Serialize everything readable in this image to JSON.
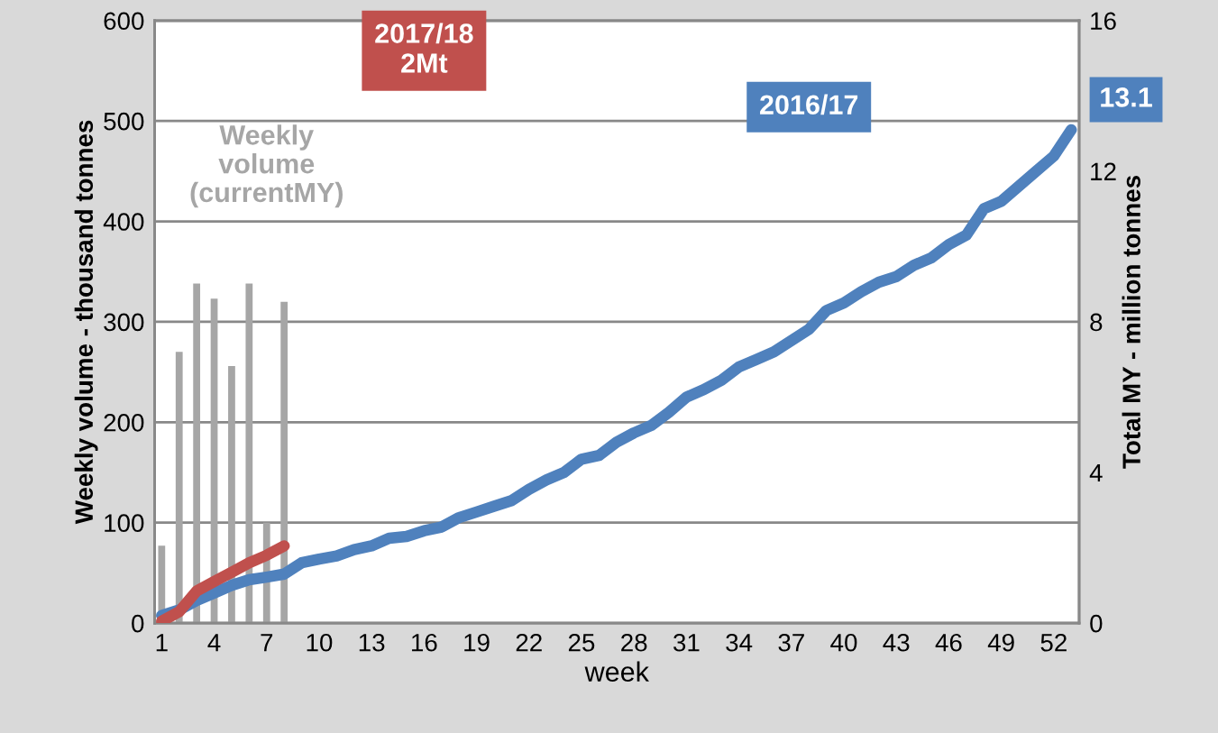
{
  "chart_data": {
    "type": "bar",
    "xlabel": "week",
    "ylabel": "Weekly volume - thousand tonnes",
    "y2label": "Total MY - million tonnes",
    "categories": [
      "1",
      null,
      null,
      "4",
      null,
      null,
      "7",
      null,
      null,
      "10",
      null,
      null,
      "13",
      null,
      null,
      "16",
      null,
      null,
      "19",
      null,
      null,
      "22",
      null,
      null,
      "25",
      null,
      null,
      "28",
      null,
      null,
      "31",
      null,
      null,
      "34",
      null,
      null,
      "37",
      null,
      null,
      "40",
      null,
      null,
      "43",
      null,
      null,
      "46",
      null,
      null,
      "49",
      null,
      null,
      "52",
      null
    ],
    "series": [
      {
        "name": "Weekly\nvolume\n(currentMY)",
        "color": "#a6a6a6",
        "values": [
          77,
          270,
          338,
          323,
          256,
          338,
          100,
          320,
          null,
          null,
          null,
          null,
          null,
          null,
          null,
          null,
          null,
          null,
          null,
          null,
          null,
          null,
          null,
          null,
          null,
          null,
          null,
          null,
          null,
          null,
          null,
          null,
          null,
          null,
          null,
          null,
          null,
          null,
          null,
          null,
          null,
          null,
          null,
          null,
          null,
          null,
          null,
          null,
          null,
          null,
          null,
          null,
          null
        ]
      },
      {
        "name": "2016/17",
        "type": "line",
        "axis": "y2",
        "color": "#4f81bd",
        "values": [
          0.2,
          0.35,
          0.6,
          0.8,
          1.0,
          1.15,
          1.22,
          1.3,
          1.6,
          1.7,
          1.78,
          1.95,
          2.05,
          2.25,
          2.3,
          2.45,
          2.55,
          2.8,
          2.95,
          3.1,
          3.25,
          3.55,
          3.8,
          4.0,
          4.35,
          4.45,
          4.8,
          5.05,
          5.25,
          5.6,
          6.0,
          6.2,
          6.45,
          6.8,
          7.0,
          7.2,
          7.5,
          7.8,
          8.3,
          8.5,
          8.8,
          9.05,
          9.2,
          9.5,
          9.7,
          10.05,
          10.3,
          11.0,
          11.2,
          11.6,
          12.0,
          12.4,
          13.1
        ],
        "value_labels": [
          null,
          null,
          null,
          null,
          null,
          null,
          null,
          null,
          null,
          null,
          null,
          null,
          null,
          null,
          null,
          null,
          null,
          null,
          null,
          null,
          null,
          null,
          null,
          null,
          null,
          null,
          null,
          null,
          null,
          null,
          null,
          null,
          null,
          null,
          null,
          null,
          null,
          null,
          null,
          null,
          null,
          null,
          null,
          null,
          null,
          null,
          null,
          null,
          null,
          null,
          null,
          null,
          "13.1"
        ]
      },
      {
        "name": "2017/18",
        "type": "line",
        "axis": "y2",
        "color": "#c0504d",
        "values": [
          0.05,
          0.3,
          0.85,
          1.1,
          1.35,
          1.6,
          1.8,
          2.05,
          null,
          null,
          null,
          null,
          null,
          null,
          null,
          null,
          null,
          null,
          null,
          null,
          null,
          null,
          null,
          null,
          null,
          null,
          null,
          null,
          null,
          null,
          null,
          null,
          null,
          null,
          null,
          null,
          null,
          null,
          null,
          null,
          null,
          null,
          null,
          null,
          null,
          null,
          null,
          null,
          null,
          null,
          null,
          null,
          null
        ]
      }
    ],
    "annotations": [
      "2Mt"
    ],
    "ylim": [
      0,
      600
    ],
    "yticks": [
      0,
      100,
      200,
      300,
      400,
      500,
      600
    ],
    "y2lim": [
      0,
      16
    ],
    "y2ticks": [
      0,
      4,
      8,
      12,
      16
    ],
    "grid": "y",
    "legend": false
  }
}
